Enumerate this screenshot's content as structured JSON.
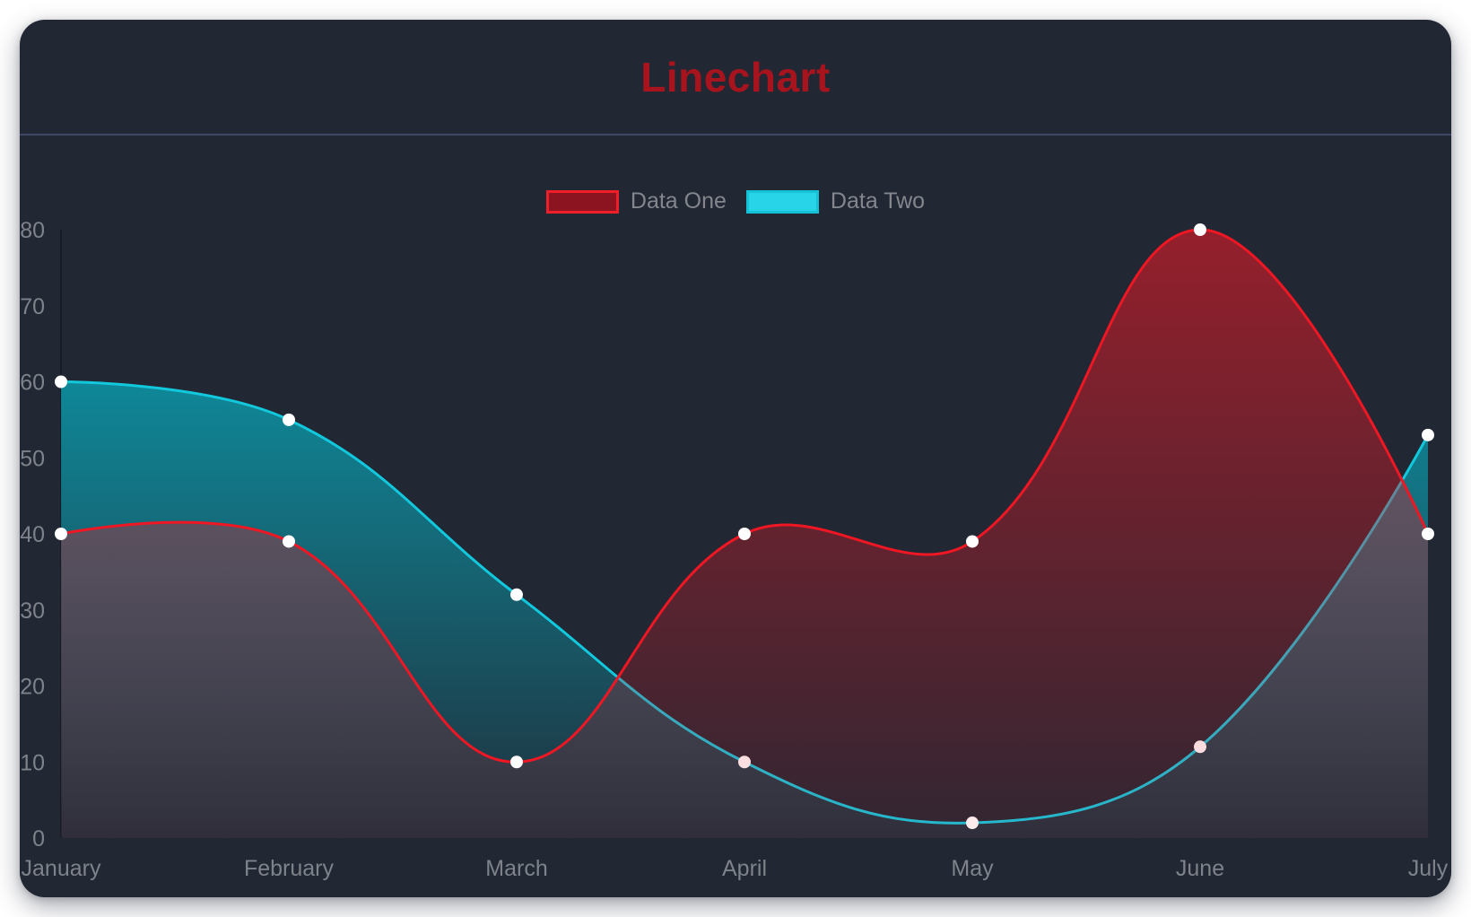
{
  "page": {
    "background": "#ffffff"
  },
  "card": {
    "background": "#212733",
    "divider_color": "#3e4765"
  },
  "header": {
    "title": "Linechart",
    "title_color": "#a8141e"
  },
  "legend": {
    "text_color": "#83868d",
    "items": [
      {
        "label": "Data One",
        "swatch_fill": "#8c1420",
        "swatch_border": "#f01e28"
      },
      {
        "label": "Data Two",
        "swatch_fill": "#28d4e8",
        "swatch_border": "#14c2d8"
      }
    ]
  },
  "chart_data": {
    "type": "line",
    "title": "Linechart",
    "categories": [
      "January",
      "February",
      "March",
      "April",
      "May",
      "June",
      "July"
    ],
    "series": [
      {
        "name": "Data One",
        "values": [
          40,
          39,
          10,
          40,
          39,
          80,
          40
        ],
        "line_color": "#ee1723",
        "fill_color": "#e81a26",
        "fill_opacity_top": 0.58,
        "fill_opacity_bottom": 0.08
      },
      {
        "name": "Data Two",
        "values": [
          60,
          55,
          32,
          10,
          2,
          12,
          53
        ],
        "line_color": "#12c8dd",
        "fill_color": "#00d6ea",
        "fill_opacity_top": 0.72,
        "fill_opacity_bottom": 0.05
      }
    ],
    "ylim": [
      0,
      80
    ],
    "yticks": [
      0,
      10,
      20,
      30,
      40,
      50,
      60,
      70,
      80
    ],
    "xlabel": "",
    "ylabel": "",
    "legend_position": "top-center",
    "grid": false,
    "axis_line_color": "rgba(0,0,0,0.28)",
    "axis_text_color": "#7e828a",
    "point_color": "#ffffff",
    "point_radius": 7,
    "line_width": 3,
    "tension": 0.4,
    "draw_order": "reversed"
  }
}
